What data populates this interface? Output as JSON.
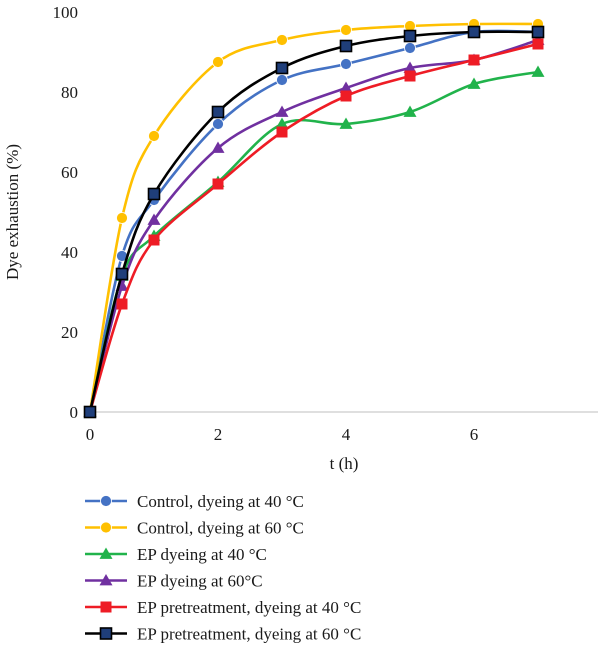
{
  "chart_data": {
    "type": "line",
    "xlabel": "t (h)",
    "ylabel": "Dye exhaustion (%)",
    "xlim": [
      0,
      8
    ],
    "ylim": [
      0,
      100
    ],
    "xticks": [
      0,
      2,
      4,
      6
    ],
    "yticks": [
      0,
      20,
      40,
      60,
      80,
      100
    ],
    "x": [
      0,
      0.5,
      1,
      2,
      3,
      4,
      5,
      6,
      7
    ],
    "grid": false,
    "legend_position": "bottom",
    "series": [
      {
        "name": "Control, dyeing at 40 °C",
        "color": "#4472C4",
        "marker": "circle",
        "values": [
          0,
          39,
          53,
          72,
          83,
          87,
          91,
          95,
          95
        ]
      },
      {
        "name": "Control, dyeing at 60 °C",
        "color": "#FFC000",
        "marker": "circle",
        "values": [
          0,
          48.5,
          69,
          87.5,
          93,
          95.5,
          96.5,
          97,
          97
        ]
      },
      {
        "name": "EP dyeing at 40 °C",
        "color": "#21B34B",
        "marker": "triangle",
        "values": [
          0,
          34,
          44,
          57.5,
          72,
          72,
          75,
          82,
          85
        ]
      },
      {
        "name": "EP dyeing at 60°C",
        "color": "#7030A0",
        "marker": "triangle",
        "values": [
          0,
          31.5,
          48,
          66,
          75,
          81,
          86,
          88,
          93
        ]
      },
      {
        "name": "EP pretreatment, dyeing at 40 °C",
        "color": "#EE1C25",
        "marker": "square",
        "values": [
          0,
          27,
          43,
          57,
          70,
          79,
          84,
          88,
          92
        ]
      },
      {
        "name": "EP pretreatment, dyeing at 60 °C",
        "color": "#000000",
        "marker": "square-outline",
        "outline": "#1F3E7A",
        "values": [
          0,
          34.5,
          54.5,
          75,
          86,
          91.5,
          94,
          95,
          95
        ]
      }
    ]
  }
}
